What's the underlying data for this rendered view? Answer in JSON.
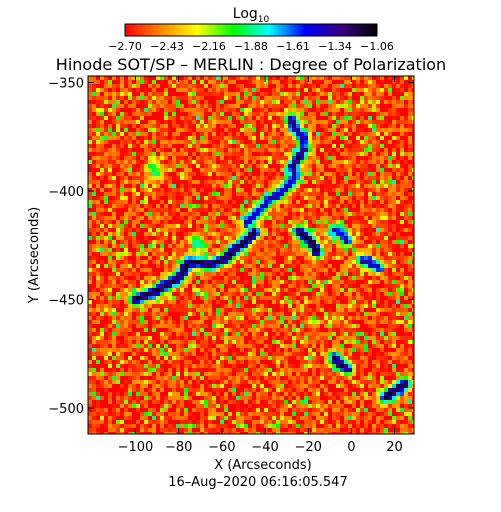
{
  "chart_data": {
    "type": "heatmap",
    "title": "Hinode SOT/SP – MERLIN : Degree of Polarization",
    "colorbar": {
      "label_base": "Log",
      "label_sub": "10",
      "tick_labels": [
        "−2.70",
        "−2.43",
        "−2.16",
        "−1.88",
        "−1.61",
        "−1.34",
        "−1.06"
      ],
      "vmin": -2.7,
      "vmax": -1.06,
      "colormap": [
        "#ff0000",
        "#ff8800",
        "#ffff00",
        "#00ff00",
        "#00ffff",
        "#0000ff",
        "#3a0080",
        "#000000"
      ]
    },
    "xlabel": "X (Arcseconds)",
    "ylabel": "Y (Arcseconds)",
    "xlim": [
      -122,
      29
    ],
    "ylim": [
      -512,
      -347
    ],
    "x_ticks": [
      -100,
      -80,
      -60,
      -40,
      -20,
      0,
      20
    ],
    "x_tick_labels": [
      "−100",
      "−80",
      "−60",
      "−40",
      "−20",
      "0",
      "20"
    ],
    "y_ticks": [
      -350,
      -400,
      -450,
      -500
    ],
    "y_tick_labels": [
      "−350",
      "−400",
      "−450",
      "−500"
    ],
    "background_level": -2.6,
    "features": [
      {
        "x": [
          -100,
          -90,
          -80,
          -75,
          -70,
          -65,
          -58,
          -55,
          -50,
          -45
        ],
        "y": [
          -450,
          -446,
          -440,
          -433,
          -433,
          -434,
          -431,
          -428,
          -424,
          -419
        ],
        "level": -1.15
      },
      {
        "x": [
          -48,
          -42,
          -38,
          -34,
          -30,
          -26
        ],
        "y": [
          -414,
          -408,
          -404,
          -402,
          -398,
          -393
        ],
        "level": -1.4
      },
      {
        "x": [
          -27,
          -25,
          -22
        ],
        "y": [
          -389,
          -385,
          -381
        ],
        "level": -1.2
      },
      {
        "x": [
          -28,
          -26,
          -24,
          -22
        ],
        "y": [
          -367,
          -371,
          -374,
          -376
        ],
        "level": -1.3
      },
      {
        "x": [
          -24,
          -20,
          -18,
          -16
        ],
        "y": [
          -419,
          -422,
          -425,
          -428
        ],
        "level": -1.1
      },
      {
        "x": [
          -8,
          -4,
          -2
        ],
        "y": [
          -418,
          -420,
          -423
        ],
        "level": -1.4
      },
      {
        "x": [
          5,
          8,
          12
        ],
        "y": [
          -432,
          -433,
          -435
        ],
        "level": -1.3
      },
      {
        "x": [
          -8,
          -5,
          -2
        ],
        "y": [
          -477,
          -480,
          -482
        ],
        "level": -1.2
      },
      {
        "x": [
          16,
          19,
          22,
          25
        ],
        "y": [
          -495,
          -493,
          -491,
          -489
        ],
        "level": -1.1
      },
      {
        "x": [
          -92,
          -90
        ],
        "y": [
          -389,
          -392
        ],
        "level": -1.9
      },
      {
        "x": [
          -72,
          -70
        ],
        "y": [
          -423,
          -425
        ],
        "level": -1.8
      }
    ]
  },
  "footer": {
    "timestamp": "16–Aug–2020 06:16:05.547"
  }
}
